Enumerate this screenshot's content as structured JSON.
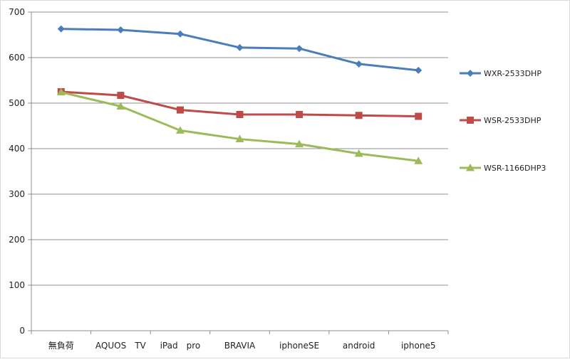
{
  "chart_data": {
    "type": "line",
    "title": "",
    "xlabel": "",
    "ylabel": "",
    "ylim": [
      0,
      700
    ],
    "yticks": [
      0,
      100,
      200,
      300,
      400,
      500,
      600,
      700
    ],
    "grid": true,
    "legend_position": "right",
    "categories": [
      "無負荷",
      "AQUOS　TV",
      "iPad　pro",
      "BRAVIA",
      "iphoneSE",
      "android",
      "iphone5"
    ],
    "series": [
      {
        "name": "WXR-2533DHP",
        "values": [
          663,
          661,
          652,
          622,
          620,
          586,
          572
        ],
        "color": "#4a7ebb",
        "marker": "diamond"
      },
      {
        "name": "WSR-2533DHP",
        "values": [
          525,
          517,
          485,
          475,
          475,
          473,
          471
        ],
        "color": "#be4b48",
        "marker": "square"
      },
      {
        "name": "WSR-1166DHP3",
        "values": [
          524,
          493,
          440,
          421,
          410,
          389,
          373
        ],
        "color": "#9bbb59",
        "marker": "triangle"
      }
    ]
  }
}
